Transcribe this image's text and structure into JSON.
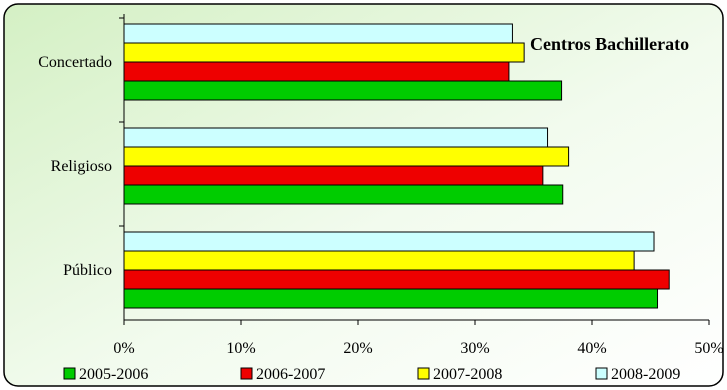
{
  "chart_data": {
    "type": "bar",
    "orientation": "horizontal",
    "title": "Centros Bachillerato",
    "categories": [
      "Concertado",
      "Religioso",
      "Público"
    ],
    "series": [
      {
        "name": "2005-2006",
        "color": "#00cc00",
        "values": [
          37.4,
          37.5,
          45.6
        ]
      },
      {
        "name": "2006-2007",
        "color": "#ee0000",
        "values": [
          32.9,
          35.8,
          46.6
        ]
      },
      {
        "name": "2007-2008",
        "color": "#ffff00",
        "values": [
          34.2,
          38.0,
          43.6
        ]
      },
      {
        "name": "2008-2009",
        "color": "#ccffff",
        "values": [
          33.2,
          36.2,
          45.3
        ]
      }
    ],
    "xlim": [
      0,
      50
    ],
    "x_ticks": [
      "0%",
      "10%",
      "20%",
      "30%",
      "40%",
      "50%"
    ],
    "legend_position": "bottom",
    "grid": false
  }
}
